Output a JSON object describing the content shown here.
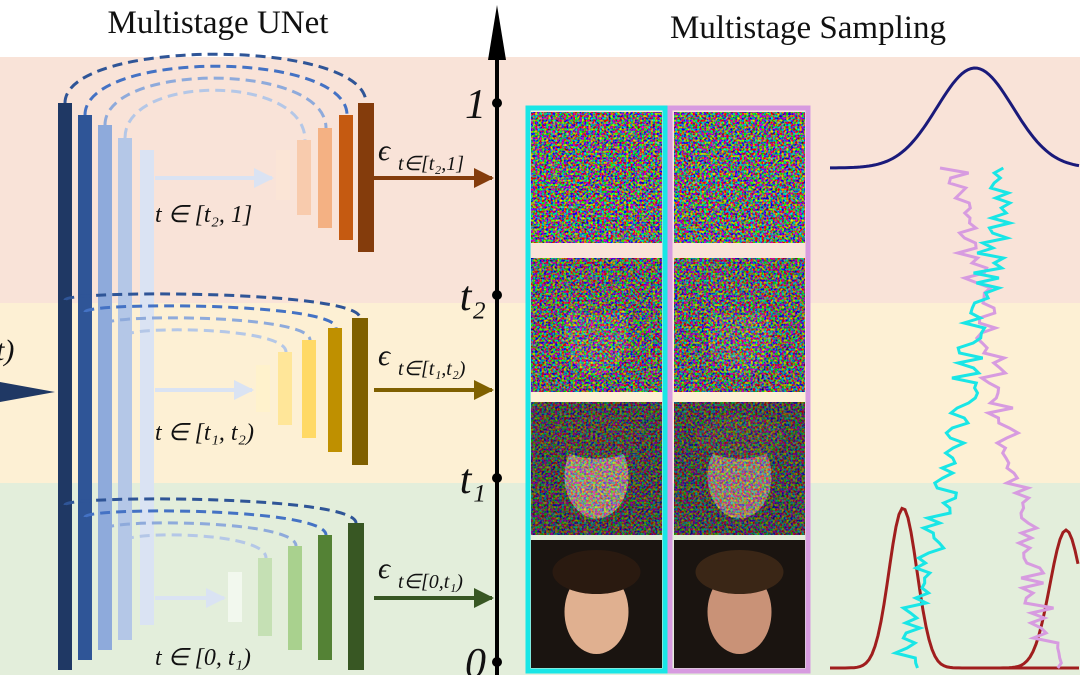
{
  "header": {
    "left_title": "Multistage UNet",
    "right_title": "Multistage Sampling"
  },
  "input_label": "t)",
  "time_axis": {
    "labels": [
      "1",
      "t₂",
      "t₁",
      "0"
    ]
  },
  "stages": [
    {
      "range_label": "t ∈ [t₂, 1]",
      "epsilon": "ϵ",
      "epsilon_subscript": "t∈[t₂,1]"
    },
    {
      "range_label": "t ∈ [t₁, t₂)",
      "epsilon": "ϵ",
      "epsilon_subscript": "t∈[t₁,t₂)"
    },
    {
      "range_label": "t ∈ [0, t₁)",
      "epsilon": "ϵ",
      "epsilon_subscript": "t∈[0,t₁)"
    }
  ]
}
